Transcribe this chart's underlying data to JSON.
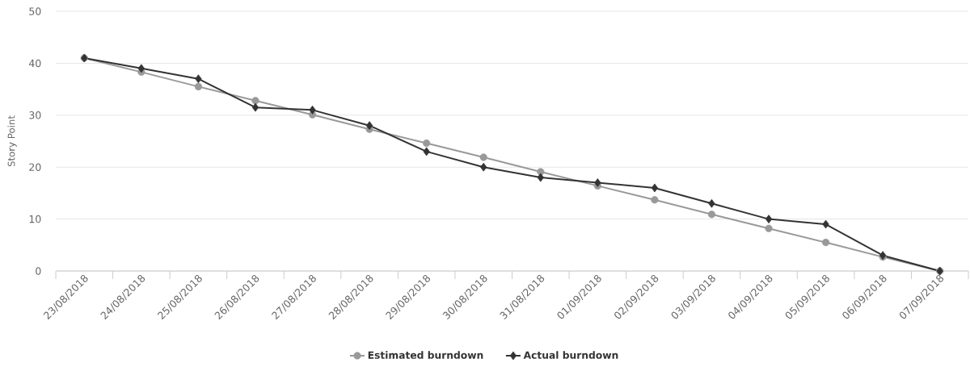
{
  "chart_data": {
    "type": "line",
    "ylabel": "Story Point",
    "categories": [
      "23/08/2018",
      "24/08/2018",
      "25/08/2018",
      "26/08/2018",
      "27/08/2018",
      "28/08/2018",
      "29/08/2018",
      "30/08/2018",
      "31/08/2018",
      "01/09/2018",
      "02/09/2018",
      "03/09/2018",
      "04/09/2018",
      "05/09/2018",
      "06/09/2018",
      "07/09/2018"
    ],
    "series": [
      {
        "name": "Estimated burndown",
        "color": "#999999",
        "marker": "circle",
        "values": [
          41,
          38.3,
          35.5,
          32.8,
          30.1,
          27.3,
          24.6,
          21.9,
          19.1,
          16.4,
          13.7,
          10.9,
          8.2,
          5.5,
          2.7,
          0
        ]
      },
      {
        "name": "Actual burndown",
        "color": "#333333",
        "marker": "diamond",
        "values": [
          41,
          39,
          37,
          31.5,
          31,
          28,
          23,
          20,
          18,
          17,
          16,
          13,
          10,
          9,
          3,
          0
        ]
      }
    ],
    "ylim": [
      0,
      50
    ],
    "yticks": [
      0,
      10,
      20,
      30,
      40,
      50
    ],
    "grid": "y",
    "legend": "bottom",
    "line_style": "solid"
  }
}
